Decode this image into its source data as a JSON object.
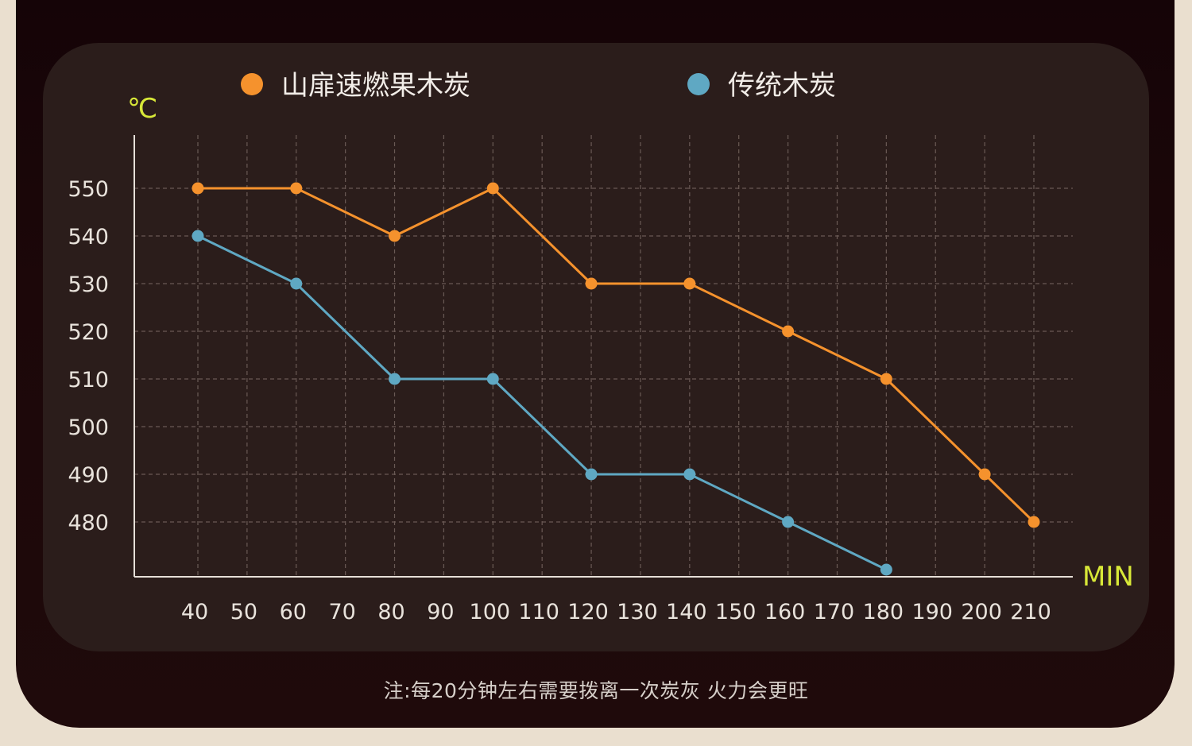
{
  "chart_data": {
    "type": "line",
    "x": [
      40,
      60,
      80,
      100,
      120,
      140,
      160,
      180,
      200,
      210
    ],
    "x_ticks": [
      40,
      50,
      60,
      70,
      80,
      90,
      100,
      110,
      120,
      130,
      140,
      150,
      160,
      170,
      180,
      190,
      200,
      210
    ],
    "y_ticks": [
      480,
      490,
      500,
      510,
      520,
      530,
      540,
      550
    ],
    "xlabel": "MIN",
    "ylabel": "℃",
    "ylim": [
      468.5,
      561
    ],
    "grid": true,
    "legend_placement": "top",
    "series": [
      {
        "name": "山扉速燃果木炭",
        "color": "#f5922d",
        "points": [
          [
            40,
            550
          ],
          [
            60,
            550
          ],
          [
            80,
            540
          ],
          [
            100,
            550
          ],
          [
            120,
            530
          ],
          [
            140,
            530
          ],
          [
            160,
            520
          ],
          [
            180,
            510
          ],
          [
            200,
            490
          ],
          [
            210,
            480
          ]
        ]
      },
      {
        "name": "传统木炭",
        "color": "#5fa8c3",
        "points": [
          [
            40,
            540
          ],
          [
            60,
            530
          ],
          [
            80,
            510
          ],
          [
            100,
            510
          ],
          [
            120,
            490
          ],
          [
            140,
            490
          ],
          [
            160,
            480
          ],
          [
            180,
            470
          ]
        ]
      }
    ]
  },
  "footnote": "注:每20分钟左右需要拨离一次炭灰 火力会更旺",
  "colors": {
    "background": "#eadfcf",
    "frame": "#1c0709",
    "panel": "#2b1d1b",
    "axis_label": "#d8e838",
    "tick_label": "#e9e3dc"
  }
}
